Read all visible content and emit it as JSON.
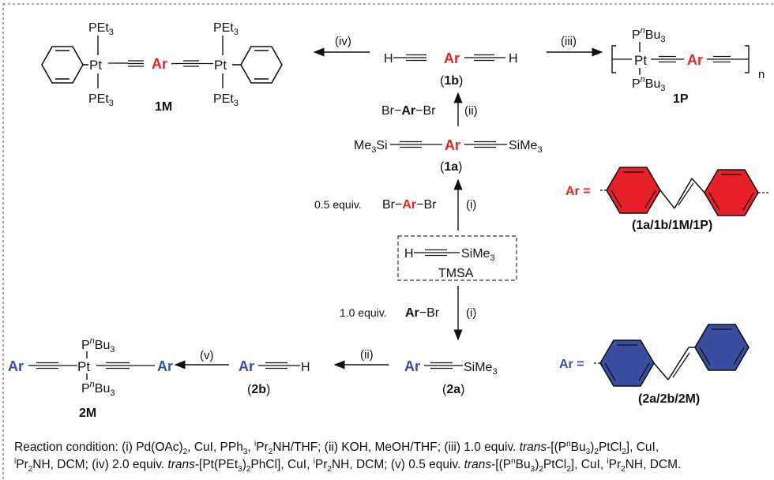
{
  "colors": {
    "red": "#e8202a",
    "blue": "#3b4da0",
    "frame": "#555555"
  },
  "compounds": {
    "c1M": "1M",
    "c1P": "1P",
    "c1b": "1b",
    "c1a": "1a",
    "c2a": "2a",
    "c2b": "2b",
    "c2M": "2M",
    "tmsa": "TMSA",
    "ar": "Ar",
    "pt": "Pt",
    "pet3": "PEt",
    "pnbu3": "Bu",
    "me3si": "Me",
    "sime3": "SiMe",
    "n_repeat": "n"
  },
  "steps": {
    "i": "(i)",
    "ii": "(ii)",
    "iii": "(iii)",
    "iv": "(iv)",
    "v": "(v)",
    "half_equiv": "0.5 equiv.",
    "one_equiv": "1.0 equiv.",
    "br": "Br"
  },
  "ar_keys": {
    "red_label": "(1a/1b/1M/1P)",
    "blue_label": "(2a/2b/2M)",
    "ar_eq": "Ar ="
  },
  "conditions": {
    "line1_a": "Reaction condition: (i) Pd(OAc)",
    "line1_b": ", CuI, PPh",
    "line1_c": ", ",
    "line1_d": "Pr",
    "line1_e": "NH/THF; (ii) KOH, MeOH/THF; (iii) 1.0 equiv. ",
    "trans": "trans",
    "line1_f": "-[(P",
    "line1_g": "Bu",
    "line1_h": ")",
    "line1_i": "PtCl",
    "line1_j": "], CuI,",
    "line2_a": "Pr",
    "line2_b": "NH, DCM; (iv) 2.0 equiv. ",
    "line2_c": "-[Pt(PEt",
    "line2_d": ")",
    "line2_e": "PhCl], CuI, ",
    "line2_f": "Pr",
    "line2_g": "NH, DCM; (v) 0.5 equiv. ",
    "line2_h": "-[(P",
    "line2_i": "Bu",
    "line2_j": ")",
    "line2_k": "PtCl",
    "line2_l": "], CuI, ",
    "line2_m": "Pr",
    "line2_n": "NH, DCM.",
    "sub2": "2",
    "sub3": "3",
    "sup_i": "i",
    "sup_n": "n"
  }
}
